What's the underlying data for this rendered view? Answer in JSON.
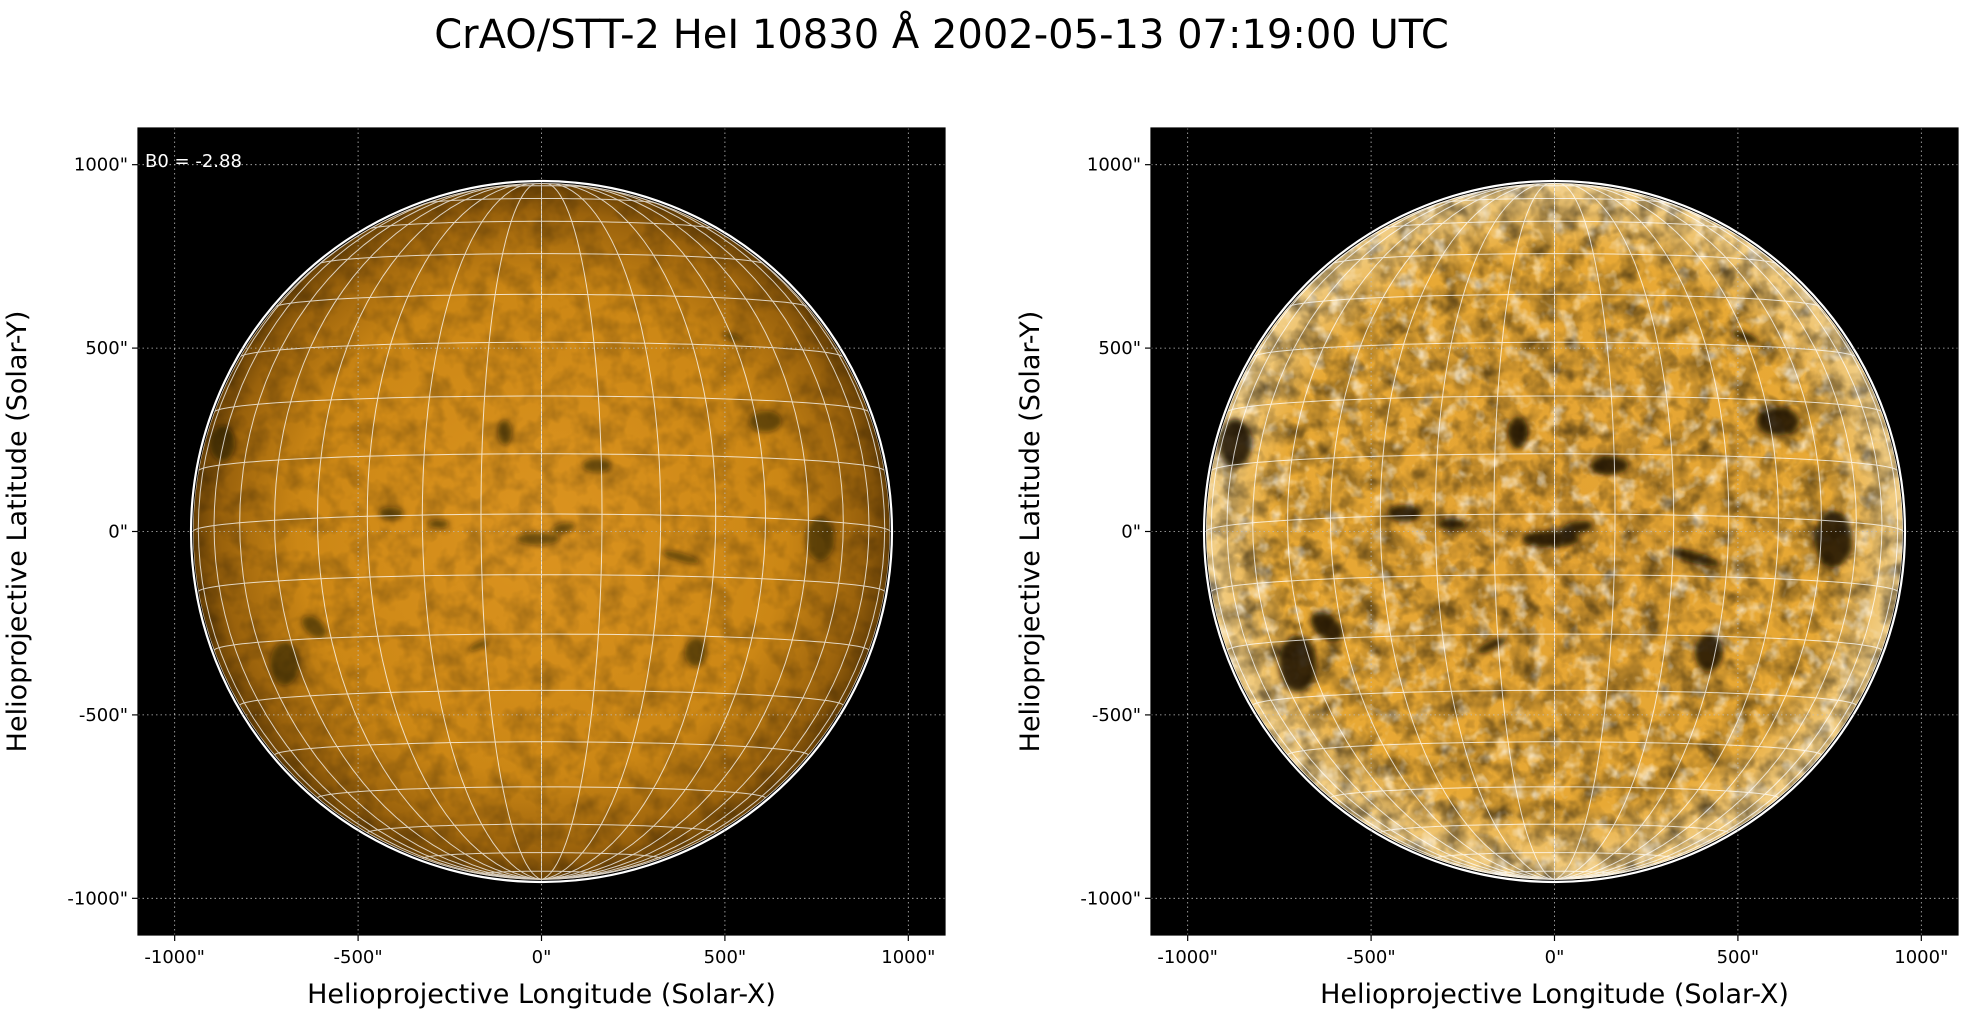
{
  "title": "CrAO/STT-2 HeI 10830 Å 2002-05-13 07:19:00 UTC",
  "annotation": "B0 = -2.88",
  "colors": {
    "background": "#000000",
    "sun_base": "#d08a16",
    "limb": "#ffffff",
    "grid": "#ffffff"
  },
  "panels": [
    {
      "name": "left",
      "xlabel": "Helioprojective Longitude (Solar-X)",
      "ylabel": "Helioprojective Latitude (Solar-Y)",
      "xticks": [
        "-1000\"",
        "-500\"",
        "0\"",
        "500\"",
        "1000\""
      ],
      "yticks": [
        "1000\"",
        "500\"",
        "0\"",
        "-500\"",
        "-1000\""
      ],
      "contrast": "normal"
    },
    {
      "name": "right",
      "xlabel": "Helioprojective Longitude (Solar-X)",
      "ylabel": "Helioprojective Latitude (Solar-Y)",
      "xticks": [
        "-1000\"",
        "-500\"",
        "0\"",
        "500\"",
        "1000\""
      ],
      "yticks": [
        "1000\"",
        "500\"",
        "0\"",
        "-500\"",
        "-1000\""
      ],
      "contrast": "enhanced"
    }
  ],
  "axis_range_arcsec": [
    -1100,
    1100
  ],
  "solar_radius_arcsec": 950
}
